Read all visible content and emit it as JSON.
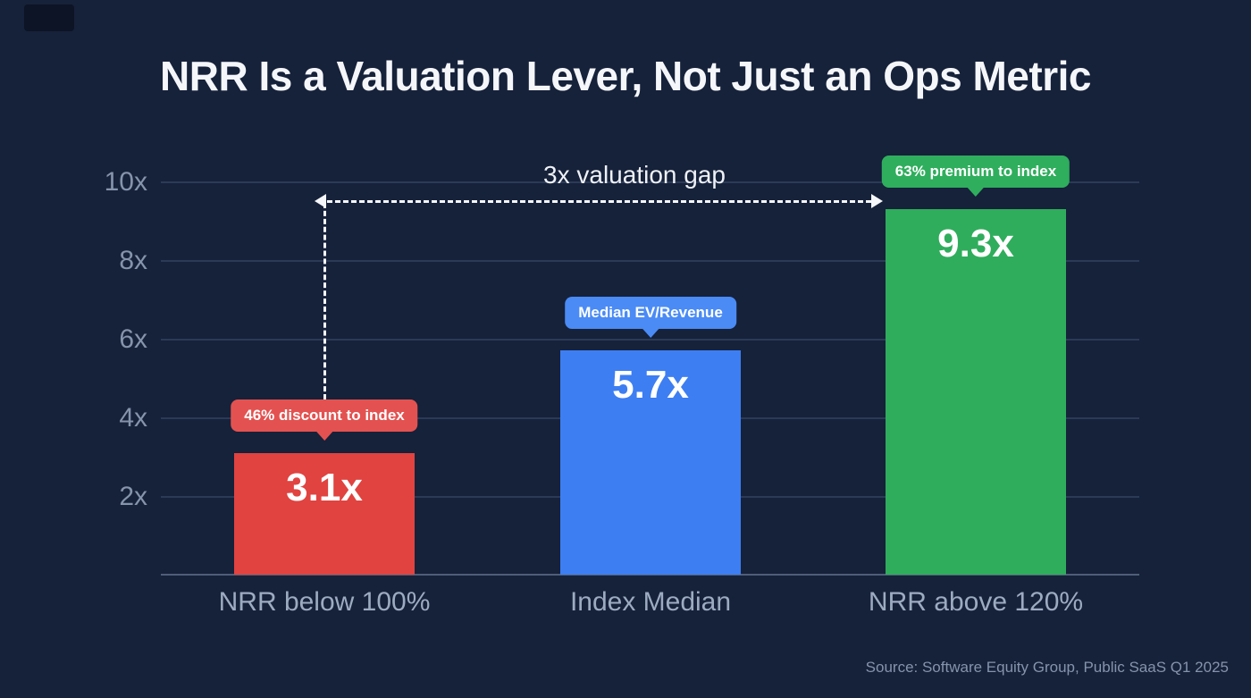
{
  "page": {
    "title": "NRR Is a Valuation Lever, Not Just an Ops Metric",
    "source": "Source: Software Equity Group, Public SaaS Q1 2025",
    "background": "#16213a"
  },
  "chart_data": {
    "type": "bar",
    "title": "NRR Is a Valuation Lever, Not Just an Ops Metric",
    "categories": [
      "NRR below 100%",
      "Index Median",
      "NRR above 120%"
    ],
    "values": [
      3.1,
      5.7,
      9.3
    ],
    "ylim": [
      0,
      10
    ],
    "yticks": [
      "10x",
      "8x",
      "6x",
      "4x",
      "2x"
    ],
    "grid": true,
    "legend": "none",
    "bars": [
      {
        "label": "NRR below 100%",
        "value": 3.1,
        "value_label": "3.1x",
        "color": "#e04340",
        "badge": "46% discount to index",
        "badge_color": "#e35250"
      },
      {
        "label": "Index Median",
        "value": 5.7,
        "value_label": "5.7x",
        "color": "#3d7ef2",
        "badge": "Median EV/Revenue",
        "badge_color": "#4a8bf5"
      },
      {
        "label": "NRR above 120%",
        "value": 9.3,
        "value_label": "9.3x",
        "color": "#2fad5c",
        "badge": "63% premium to index",
        "badge_color": "#2fae5d"
      }
    ],
    "annotation": {
      "label": "3x valuation gap",
      "from": "NRR below 100%",
      "to": "NRR above 120%"
    }
  }
}
